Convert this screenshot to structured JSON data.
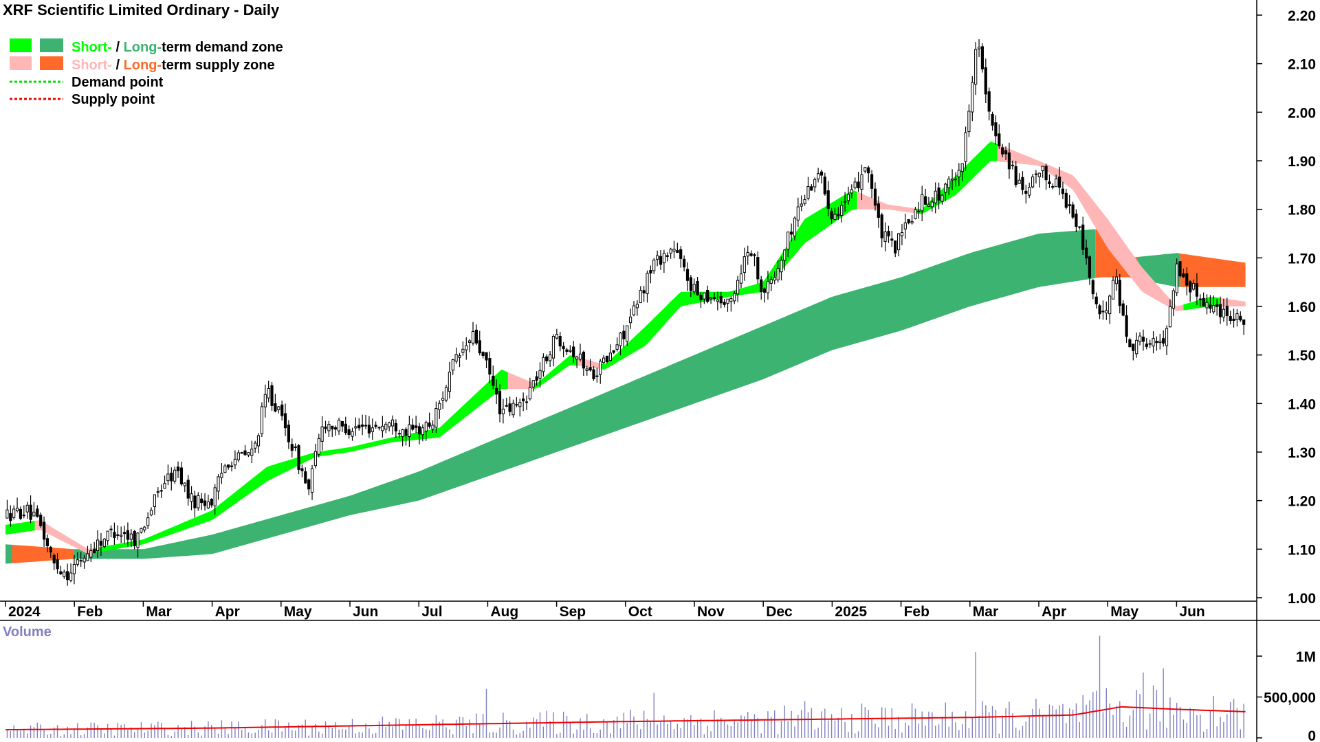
{
  "colors": {
    "short_demand": "#00ff00",
    "long_demand": "#3cb371",
    "short_supply": "#ffb6b6",
    "long_supply": "#ff6a2a",
    "demand_point": "#00dd00",
    "supply_point": "#ee0000",
    "volume_bar": "#8080c0",
    "volume_avg": "#ee0000"
  },
  "chart_data": {
    "type": "candlestick",
    "title": "XRF Scientific Limited Ordinary - Daily",
    "legend": [
      {
        "parts": [
          "Short-",
          " / ",
          "Long-",
          "term demand zone"
        ],
        "swatches": [
          "short_demand",
          "long_demand"
        ]
      },
      {
        "parts": [
          "Short-",
          " / ",
          "Long-",
          "term supply zone"
        ],
        "swatches": [
          "short_supply",
          "long_supply"
        ]
      },
      {
        "label": "Demand point",
        "line": "demand_point"
      },
      {
        "label": "Supply point",
        "line": "supply_point"
      }
    ],
    "legend_position": "top-left",
    "price_axis": {
      "ticks": [
        "2.20",
        "2.10",
        "2.00",
        "1.90",
        "1.80",
        "1.70",
        "1.60",
        "1.50",
        "1.40",
        "1.30",
        "1.20",
        "1.10",
        "1.00"
      ],
      "range": [
        0.98,
        2.23
      ]
    },
    "x_ticks": [
      {
        "label": "2024",
        "month": 0
      },
      {
        "label": "Feb",
        "month": 1
      },
      {
        "label": "Mar",
        "month": 2
      },
      {
        "label": "Apr",
        "month": 3
      },
      {
        "label": "May",
        "month": 4
      },
      {
        "label": "Jun",
        "month": 5
      },
      {
        "label": "Jul",
        "month": 6
      },
      {
        "label": "Aug",
        "month": 7
      },
      {
        "label": "Sep",
        "month": 8
      },
      {
        "label": "Oct",
        "month": 9
      },
      {
        "label": "Nov",
        "month": 10
      },
      {
        "label": "Dec",
        "month": 11
      },
      {
        "label": "2025",
        "month": 12
      },
      {
        "label": "Feb",
        "month": 13
      },
      {
        "label": "Mar",
        "month": 14
      },
      {
        "label": "Apr",
        "month": 15
      },
      {
        "label": "May",
        "month": 16
      },
      {
        "label": "Jun",
        "month": 17
      }
    ],
    "price_path": [
      [
        0,
        1.17
      ],
      [
        0.3,
        1.18
      ],
      [
        0.5,
        1.15
      ],
      [
        0.7,
        1.07
      ],
      [
        0.9,
        1.05
      ],
      [
        1.1,
        1.08
      ],
      [
        1.4,
        1.12
      ],
      [
        1.6,
        1.14
      ],
      [
        1.9,
        1.12
      ],
      [
        2.0,
        1.15
      ],
      [
        2.3,
        1.24
      ],
      [
        2.5,
        1.26
      ],
      [
        2.7,
        1.2
      ],
      [
        3.0,
        1.2
      ],
      [
        3.2,
        1.28
      ],
      [
        3.6,
        1.3
      ],
      [
        3.8,
        1.43
      ],
      [
        4.0,
        1.37
      ],
      [
        4.2,
        1.3
      ],
      [
        4.4,
        1.22
      ],
      [
        4.6,
        1.36
      ],
      [
        4.9,
        1.35
      ],
      [
        5.2,
        1.35
      ],
      [
        5.6,
        1.36
      ],
      [
        5.9,
        1.34
      ],
      [
        6.2,
        1.36
      ],
      [
        6.5,
        1.48
      ],
      [
        6.8,
        1.54
      ],
      [
        7.0,
        1.47
      ],
      [
        7.2,
        1.38
      ],
      [
        7.5,
        1.4
      ],
      [
        7.8,
        1.48
      ],
      [
        8.0,
        1.54
      ],
      [
        8.3,
        1.5
      ],
      [
        8.5,
        1.46
      ],
      [
        8.8,
        1.5
      ],
      [
        9.1,
        1.58
      ],
      [
        9.4,
        1.69
      ],
      [
        9.7,
        1.72
      ],
      [
        10.0,
        1.63
      ],
      [
        10.3,
        1.62
      ],
      [
        10.5,
        1.6
      ],
      [
        10.8,
        1.73
      ],
      [
        11.0,
        1.63
      ],
      [
        11.2,
        1.67
      ],
      [
        11.5,
        1.8
      ],
      [
        11.8,
        1.88
      ],
      [
        12.0,
        1.79
      ],
      [
        12.3,
        1.83
      ],
      [
        12.5,
        1.9
      ],
      [
        12.7,
        1.75
      ],
      [
        12.9,
        1.72
      ],
      [
        13.3,
        1.82
      ],
      [
        13.6,
        1.83
      ],
      [
        13.9,
        1.9
      ],
      [
        14.1,
        2.16
      ],
      [
        14.3,
        1.97
      ],
      [
        14.5,
        1.92
      ],
      [
        14.8,
        1.82
      ],
      [
        15.0,
        1.88
      ],
      [
        15.3,
        1.85
      ],
      [
        15.6,
        1.75
      ],
      [
        15.9,
        1.56
      ],
      [
        16.1,
        1.67
      ],
      [
        16.3,
        1.52
      ],
      [
        16.5,
        1.53
      ],
      [
        16.8,
        1.52
      ],
      [
        17.0,
        1.68
      ],
      [
        17.2,
        1.64
      ],
      [
        17.5,
        1.6
      ],
      [
        17.9,
        1.58
      ],
      [
        18.0,
        1.57
      ]
    ],
    "zones": {
      "short_upper": [
        [
          0,
          1.15
        ],
        [
          0.5,
          1.16
        ],
        [
          1.2,
          1.1
        ],
        [
          2.0,
          1.12
        ],
        [
          3.0,
          1.18
        ],
        [
          3.8,
          1.27
        ],
        [
          4.5,
          1.3
        ],
        [
          5.0,
          1.31
        ],
        [
          5.6,
          1.33
        ],
        [
          6.3,
          1.35
        ],
        [
          7.2,
          1.47
        ],
        [
          7.7,
          1.44
        ],
        [
          8.2,
          1.5
        ],
        [
          8.7,
          1.48
        ],
        [
          9.3,
          1.56
        ],
        [
          9.8,
          1.63
        ],
        [
          10.5,
          1.63
        ],
        [
          11.0,
          1.65
        ],
        [
          11.6,
          1.78
        ],
        [
          12.3,
          1.84
        ],
        [
          12.8,
          1.81
        ],
        [
          13.3,
          1.8
        ],
        [
          13.8,
          1.87
        ],
        [
          14.3,
          1.94
        ],
        [
          15.0,
          1.9
        ],
        [
          15.5,
          1.87
        ],
        [
          16.0,
          1.78
        ],
        [
          16.5,
          1.68
        ],
        [
          17.0,
          1.6
        ],
        [
          17.5,
          1.62
        ],
        [
          18.0,
          1.61
        ]
      ],
      "short_lower": [
        [
          0,
          1.13
        ],
        [
          0.5,
          1.14
        ],
        [
          1.2,
          1.09
        ],
        [
          2.0,
          1.11
        ],
        [
          3.0,
          1.16
        ],
        [
          3.8,
          1.24
        ],
        [
          4.5,
          1.29
        ],
        [
          5.0,
          1.3
        ],
        [
          5.6,
          1.32
        ],
        [
          6.3,
          1.33
        ],
        [
          7.2,
          1.43
        ],
        [
          7.7,
          1.43
        ],
        [
          8.2,
          1.48
        ],
        [
          8.7,
          1.47
        ],
        [
          9.3,
          1.52
        ],
        [
          9.8,
          1.6
        ],
        [
          10.5,
          1.62
        ],
        [
          11.0,
          1.63
        ],
        [
          11.6,
          1.73
        ],
        [
          12.3,
          1.8
        ],
        [
          12.8,
          1.8
        ],
        [
          13.3,
          1.79
        ],
        [
          13.8,
          1.83
        ],
        [
          14.3,
          1.9
        ],
        [
          15.0,
          1.89
        ],
        [
          15.5,
          1.84
        ],
        [
          16.0,
          1.72
        ],
        [
          16.5,
          1.63
        ],
        [
          17.0,
          1.59
        ],
        [
          17.5,
          1.6
        ],
        [
          18.0,
          1.6
        ]
      ],
      "long_upper": [
        [
          0,
          1.11
        ],
        [
          1.0,
          1.1
        ],
        [
          2.0,
          1.1
        ],
        [
          3.0,
          1.13
        ],
        [
          4.0,
          1.17
        ],
        [
          5.0,
          1.21
        ],
        [
          6.0,
          1.26
        ],
        [
          7.0,
          1.32
        ],
        [
          8.0,
          1.38
        ],
        [
          9.0,
          1.44
        ],
        [
          10.0,
          1.5
        ],
        [
          11.0,
          1.56
        ],
        [
          12.0,
          1.62
        ],
        [
          13.0,
          1.66
        ],
        [
          14.0,
          1.71
        ],
        [
          15.0,
          1.75
        ],
        [
          15.9,
          1.76
        ],
        [
          16.3,
          1.7
        ],
        [
          17.0,
          1.71
        ],
        [
          18.0,
          1.69
        ]
      ],
      "long_lower": [
        [
          0,
          1.07
        ],
        [
          1.0,
          1.08
        ],
        [
          2.0,
          1.08
        ],
        [
          3.0,
          1.09
        ],
        [
          4.0,
          1.13
        ],
        [
          5.0,
          1.17
        ],
        [
          6.0,
          1.2
        ],
        [
          7.0,
          1.25
        ],
        [
          8.0,
          1.3
        ],
        [
          9.0,
          1.35
        ],
        [
          10.0,
          1.4
        ],
        [
          11.0,
          1.45
        ],
        [
          12.0,
          1.51
        ],
        [
          13.0,
          1.55
        ],
        [
          14.0,
          1.6
        ],
        [
          15.0,
          1.64
        ],
        [
          15.9,
          1.66
        ],
        [
          16.3,
          1.66
        ],
        [
          17.0,
          1.64
        ],
        [
          18.0,
          1.64
        ]
      ]
    },
    "volume_panel": {
      "label": "Volume",
      "ticks": [
        "1M",
        "500,000",
        "0"
      ],
      "range": [
        0,
        1300000
      ],
      "avg_path": [
        [
          0,
          100000
        ],
        [
          3,
          120000
        ],
        [
          6,
          160000
        ],
        [
          9,
          200000
        ],
        [
          12,
          230000
        ],
        [
          14,
          250000
        ],
        [
          15.5,
          280000
        ],
        [
          16.2,
          380000
        ],
        [
          17,
          350000
        ],
        [
          18,
          320000
        ]
      ],
      "spikes": [
        [
          14.1,
          1050000
        ],
        [
          15.9,
          1250000
        ],
        [
          16.5,
          800000
        ],
        [
          16.8,
          850000
        ],
        [
          9.4,
          550000
        ],
        [
          7.0,
          600000
        ],
        [
          11.6,
          450000
        ]
      ]
    }
  }
}
